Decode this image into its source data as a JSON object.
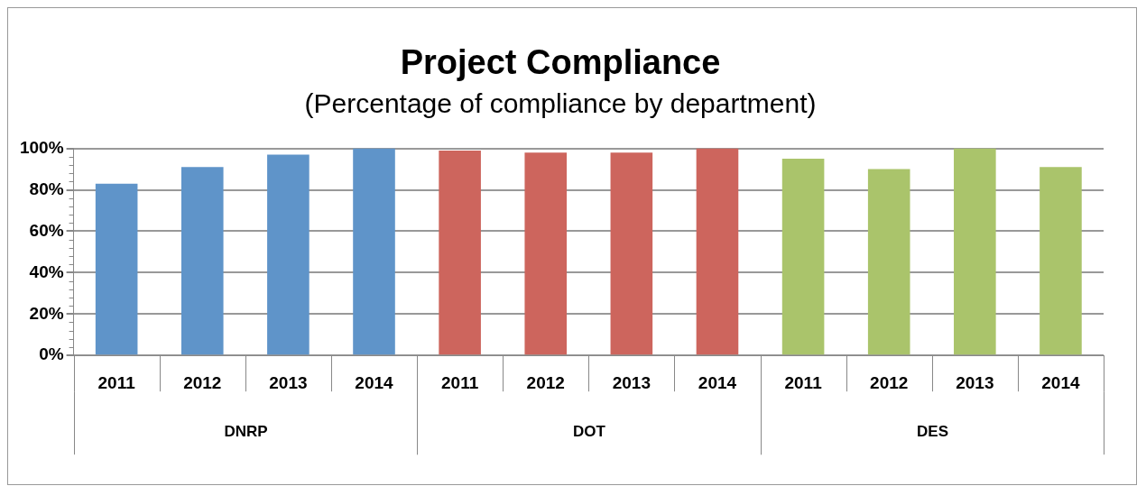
{
  "chart_data": {
    "type": "bar",
    "title": "Project Compliance",
    "subtitle": "(Percentage of compliance by department)",
    "categories": [
      "2011",
      "2012",
      "2013",
      "2014",
      "2011",
      "2012",
      "2013",
      "2014",
      "2011",
      "2012",
      "2013",
      "2014"
    ],
    "values": [
      83,
      91,
      97,
      100,
      99,
      98,
      98,
      100,
      95,
      90,
      100,
      91
    ],
    "colors": [
      "#5f94c9",
      "#5f94c9",
      "#5f94c9",
      "#5f94c9",
      "#cd655d",
      "#cd655d",
      "#cd655d",
      "#cd655d",
      "#aac46b",
      "#aac46b",
      "#aac46b",
      "#aac46b"
    ],
    "annotations": [
      "DNRP",
      "DOT",
      "DES"
    ],
    "ylim": [
      0,
      100
    ],
    "yticks": [
      {
        "value": 0,
        "label": "0%"
      },
      {
        "value": 20,
        "label": "20%"
      },
      {
        "value": 40,
        "label": "40%"
      },
      {
        "value": 60,
        "label": "60%"
      },
      {
        "value": 80,
        "label": "80%"
      },
      {
        "value": 100,
        "label": "100%"
      }
    ],
    "grid": "y",
    "legend": false
  }
}
